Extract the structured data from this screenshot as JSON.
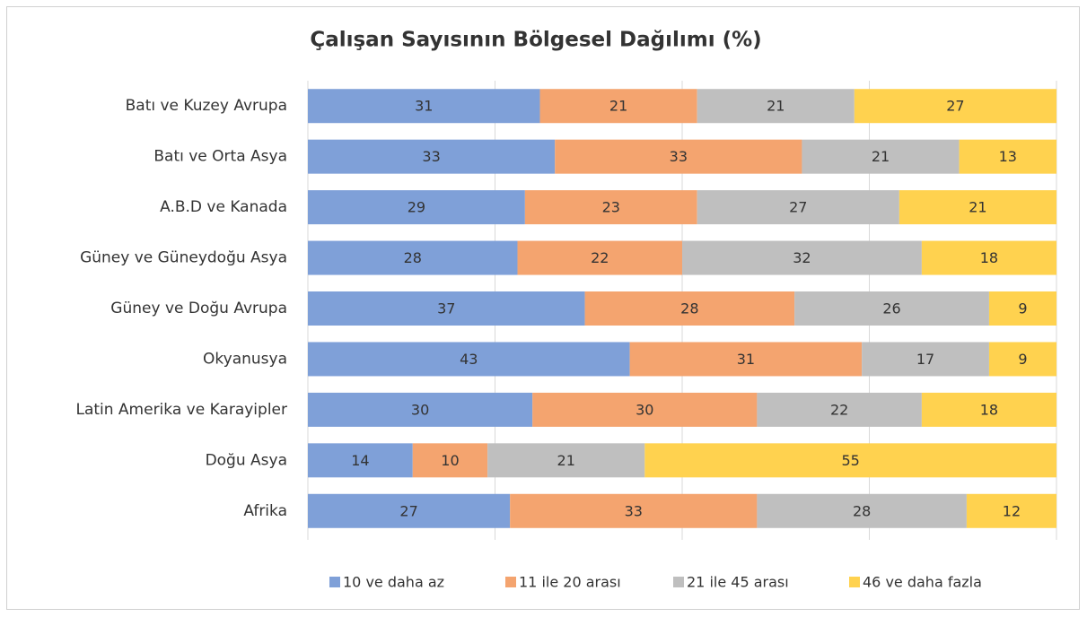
{
  "chart_data": {
    "type": "stacked_bar_horizontal",
    "title": "Çalışan Sayısının Bölgesel Dağılımı (%)",
    "categories": [
      "Batı ve Kuzey Avrupa",
      "Batı ve Orta Asya",
      "A.B.D ve Kanada",
      "Güney ve Güneydoğu Asya",
      "Güney ve Doğu Avrupa",
      "Okyanusya",
      "Latin Amerika ve Karayipler",
      "Doğu Asya",
      "Afrika"
    ],
    "series": [
      {
        "name": "10 ve daha az",
        "color": "#7fa0d8",
        "values": [
          31,
          33,
          29,
          28,
          37,
          43,
          30,
          14,
          27
        ]
      },
      {
        "name": "11 ile 20 arası",
        "color": "#f4a46f",
        "values": [
          21,
          33,
          23,
          22,
          28,
          31,
          30,
          10,
          33
        ]
      },
      {
        "name": "21 ile 45 arası",
        "color": "#bfbfbf",
        "values": [
          21,
          21,
          27,
          32,
          26,
          17,
          22,
          21,
          28
        ]
      },
      {
        "name": "46 ve daha fazla",
        "color": "#ffd24f",
        "values": [
          27,
          13,
          21,
          18,
          9,
          9,
          18,
          55,
          12
        ]
      }
    ],
    "xlim": [
      0,
      100
    ],
    "xticks": [
      0,
      25,
      50,
      75,
      100
    ],
    "grid": true,
    "legend": "bottom"
  }
}
